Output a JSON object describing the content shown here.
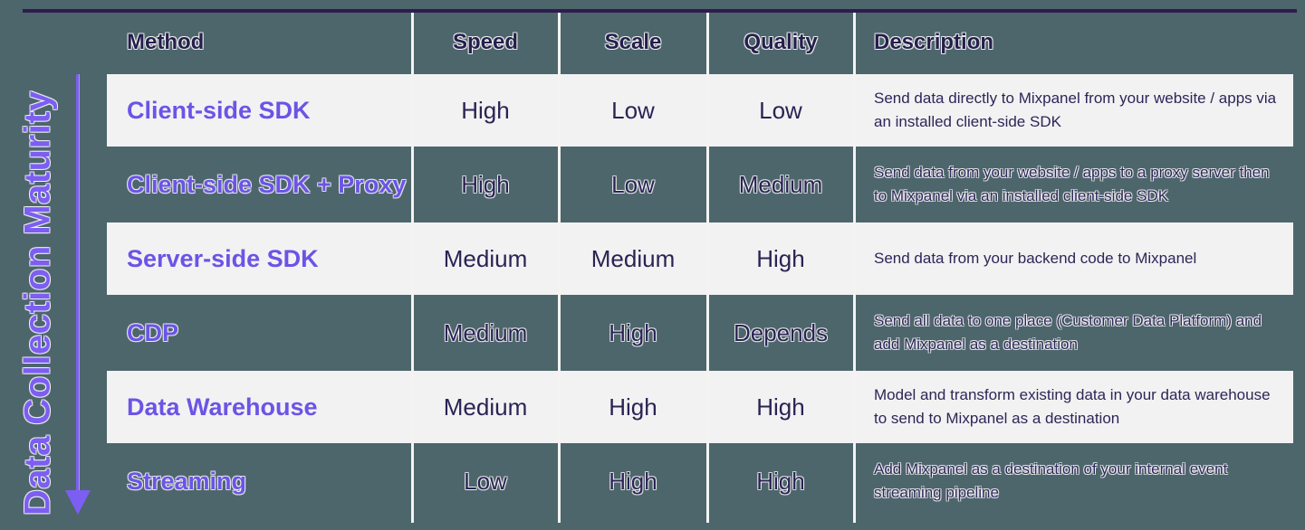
{
  "colors": {
    "background": "#4d666b",
    "top_border": "#2f1c4e",
    "light_row_background": "#f2f2f3",
    "method_purple": "#6b54e6",
    "axis_purple": "#7c5ef2",
    "dark_navy_text": "#261e4b",
    "column_divider": "#f4f3f1"
  },
  "axis": {
    "label": "Data Collection Maturity",
    "arrow_icon": "down-arrow",
    "direction": "low-to-high-downward"
  },
  "table": {
    "headers": [
      "Method",
      "Speed",
      "Scale",
      "Quality",
      "Description"
    ],
    "rows": [
      {
        "method": "Client-side SDK",
        "speed": "High",
        "scale": "Low",
        "quality": "Low",
        "description": "Send data directly to Mixpanel from your website / apps via an installed client-side SDK"
      },
      {
        "method": "Client-side SDK + Proxy",
        "speed": "High",
        "scale": "Low",
        "quality": "Medium",
        "description": "Send data from your website / apps to a proxy server then to Mixpanel via an installed client-side SDK"
      },
      {
        "method": "Server-side SDK",
        "speed": "Medium",
        "scale": "Medium",
        "quality": "High",
        "description": "Send data from your backend code to Mixpanel"
      },
      {
        "method": "CDP",
        "speed": "Medium",
        "scale": "High",
        "quality": "Depends",
        "description": "Send all data to one place (Customer Data Platform) and add Mixpanel as a destination"
      },
      {
        "method": "Data Warehouse",
        "speed": "Medium",
        "scale": "High",
        "quality": "High",
        "description": "Model and transform existing data in your data warehouse to send to Mixpanel as a destination"
      },
      {
        "method": "Streaming",
        "speed": "Low",
        "scale": "High",
        "quality": "High",
        "description": "Add Mixpanel as a destination of your internal event streaming pipeline"
      }
    ]
  }
}
